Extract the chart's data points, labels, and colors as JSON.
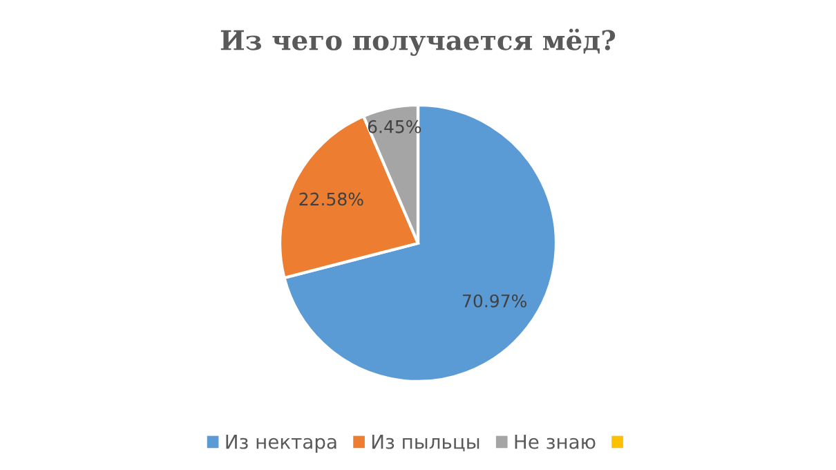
{
  "chart_data": {
    "type": "pie",
    "title": "Из чего получается мёд?",
    "categories": [
      "Из нектара",
      "Из пыльцы",
      "Не знаю",
      null
    ],
    "values": [
      70.97,
      22.58,
      6.45,
      0
    ],
    "value_labels": [
      "70.97%",
      "22.58%",
      "6.45%",
      null
    ],
    "colors": [
      "#5b9bd5",
      "#ed7d31",
      "#a5a5a5",
      "#ffc000"
    ],
    "legend": "bottom"
  }
}
